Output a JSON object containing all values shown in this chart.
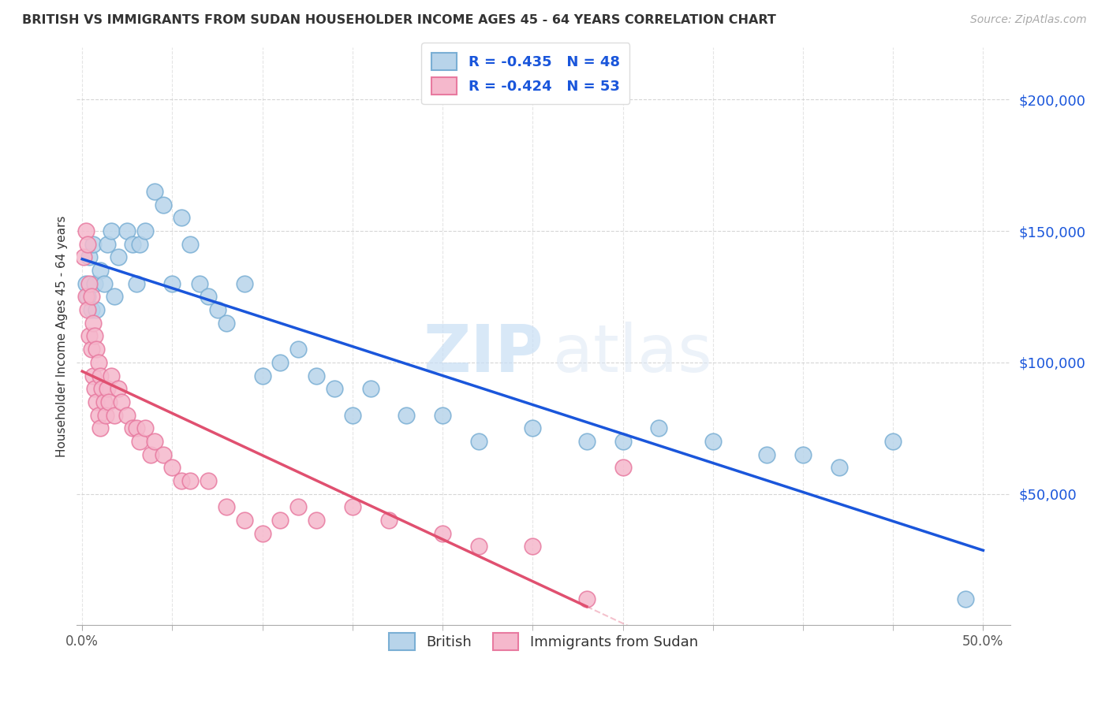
{
  "title": "BRITISH VS IMMIGRANTS FROM SUDAN HOUSEHOLDER INCOME AGES 45 - 64 YEARS CORRELATION CHART",
  "source": "Source: ZipAtlas.com",
  "ylabel": "Householder Income Ages 45 - 64 years",
  "ytick_labels": [
    "$50,000",
    "$100,000",
    "$150,000",
    "$200,000"
  ],
  "ytick_values": [
    50000,
    100000,
    150000,
    200000
  ],
  "ymin": 0,
  "ymax": 220000,
  "xmin": -0.003,
  "xmax": 0.515,
  "legend_british_R": "R = -0.435",
  "legend_british_N": "N = 48",
  "legend_sudan_R": "R = -0.424",
  "legend_sudan_N": "N = 53",
  "british_color": "#b8d4ea",
  "british_edge": "#7aafd4",
  "british_line_color": "#1a56db",
  "sudan_color": "#f5b8cc",
  "sudan_edge": "#e87aa0",
  "sudan_line_color": "#e05070",
  "watermark_zip": "ZIP",
  "watermark_atlas": "atlas",
  "british_x": [
    0.002,
    0.003,
    0.004,
    0.005,
    0.006,
    0.007,
    0.008,
    0.01,
    0.012,
    0.014,
    0.016,
    0.018,
    0.02,
    0.025,
    0.028,
    0.03,
    0.032,
    0.035,
    0.04,
    0.045,
    0.05,
    0.055,
    0.06,
    0.065,
    0.07,
    0.075,
    0.08,
    0.09,
    0.1,
    0.11,
    0.12,
    0.13,
    0.14,
    0.15,
    0.16,
    0.18,
    0.2,
    0.22,
    0.25,
    0.28,
    0.3,
    0.32,
    0.35,
    0.38,
    0.4,
    0.42,
    0.45,
    0.49
  ],
  "british_y": [
    130000,
    125000,
    140000,
    120000,
    145000,
    130000,
    120000,
    135000,
    130000,
    145000,
    150000,
    125000,
    140000,
    150000,
    145000,
    130000,
    145000,
    150000,
    165000,
    160000,
    130000,
    155000,
    145000,
    130000,
    125000,
    120000,
    115000,
    130000,
    95000,
    100000,
    105000,
    95000,
    90000,
    80000,
    90000,
    80000,
    80000,
    70000,
    75000,
    70000,
    70000,
    75000,
    70000,
    65000,
    65000,
    60000,
    70000,
    10000
  ],
  "sudan_x": [
    0.001,
    0.002,
    0.002,
    0.003,
    0.003,
    0.004,
    0.004,
    0.005,
    0.005,
    0.006,
    0.006,
    0.007,
    0.007,
    0.008,
    0.008,
    0.009,
    0.009,
    0.01,
    0.01,
    0.011,
    0.012,
    0.013,
    0.014,
    0.015,
    0.016,
    0.018,
    0.02,
    0.022,
    0.025,
    0.028,
    0.03,
    0.032,
    0.035,
    0.038,
    0.04,
    0.045,
    0.05,
    0.055,
    0.06,
    0.07,
    0.08,
    0.09,
    0.1,
    0.11,
    0.12,
    0.13,
    0.15,
    0.17,
    0.2,
    0.22,
    0.25,
    0.28,
    0.3
  ],
  "sudan_y": [
    140000,
    150000,
    125000,
    145000,
    120000,
    130000,
    110000,
    125000,
    105000,
    115000,
    95000,
    110000,
    90000,
    105000,
    85000,
    100000,
    80000,
    95000,
    75000,
    90000,
    85000,
    80000,
    90000,
    85000,
    95000,
    80000,
    90000,
    85000,
    80000,
    75000,
    75000,
    70000,
    75000,
    65000,
    70000,
    65000,
    60000,
    55000,
    55000,
    55000,
    45000,
    40000,
    35000,
    40000,
    45000,
    40000,
    45000,
    40000,
    35000,
    30000,
    30000,
    10000,
    60000
  ]
}
